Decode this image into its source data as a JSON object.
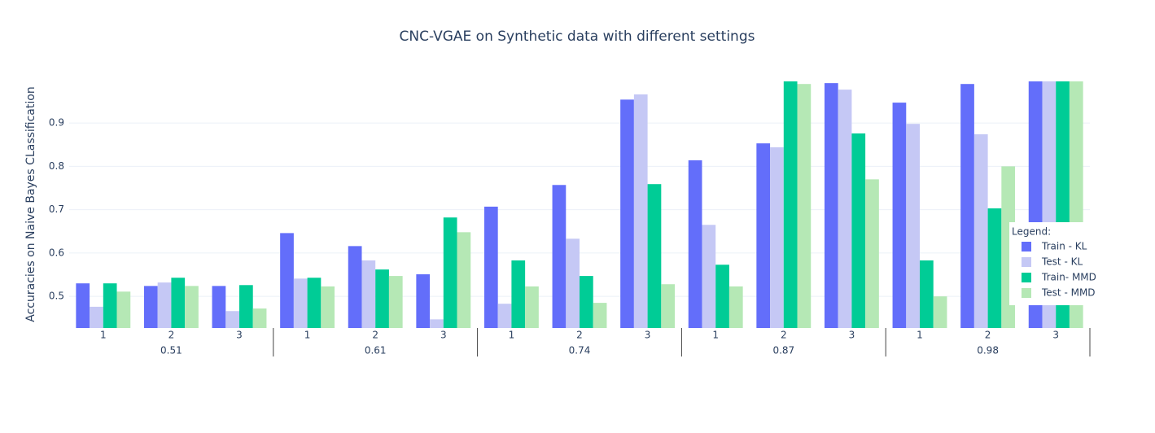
{
  "chart_data": {
    "type": "bar",
    "title": "CNC-VGAE on Synthetic data with different settings",
    "y_label": "Accuracies on Naive Bayes CLassification",
    "categories": [
      "1",
      "2",
      "3",
      "1",
      "2",
      "3",
      "1",
      "2",
      "3",
      "1",
      "2",
      "3",
      "1",
      "2",
      "3"
    ],
    "groups": [
      "0.51",
      "0.61",
      "0.74",
      "0.87",
      "0.98"
    ],
    "series": [
      {
        "name": "Train - KL",
        "color": "#636efa",
        "values": [
          0.53,
          0.524,
          0.524,
          0.646,
          0.616,
          0.551,
          0.707,
          0.757,
          0.954,
          0.814,
          0.853,
          0.992,
          0.947,
          0.99,
          0.996
        ]
      },
      {
        "name": "Test - KL",
        "color": "#c5c8f5",
        "values": [
          0.476,
          0.532,
          0.466,
          0.541,
          0.583,
          0.447,
          0.483,
          0.633,
          0.966,
          0.665,
          0.844,
          0.977,
          0.898,
          0.874,
          0.996
        ]
      },
      {
        "name": "Train- MMD",
        "color": "#00cc96",
        "values": [
          0.53,
          0.543,
          0.526,
          0.543,
          0.562,
          0.682,
          0.583,
          0.547,
          0.759,
          0.573,
          0.996,
          0.876,
          0.583,
          0.703,
          0.996
        ]
      },
      {
        "name": "Test - MMD",
        "color": "#b5e8b5",
        "values": [
          0.511,
          0.524,
          0.472,
          0.523,
          0.547,
          0.648,
          0.523,
          0.485,
          0.528,
          0.523,
          0.99,
          0.77,
          0.5,
          0.8,
          0.996
        ]
      }
    ],
    "ylim": [
      0.427,
      0.996
    ],
    "yticks": [
      0.5,
      0.6,
      0.7,
      0.8,
      0.9
    ],
    "grid": true,
    "legend_title": "Legend:",
    "legend_position": "right"
  }
}
